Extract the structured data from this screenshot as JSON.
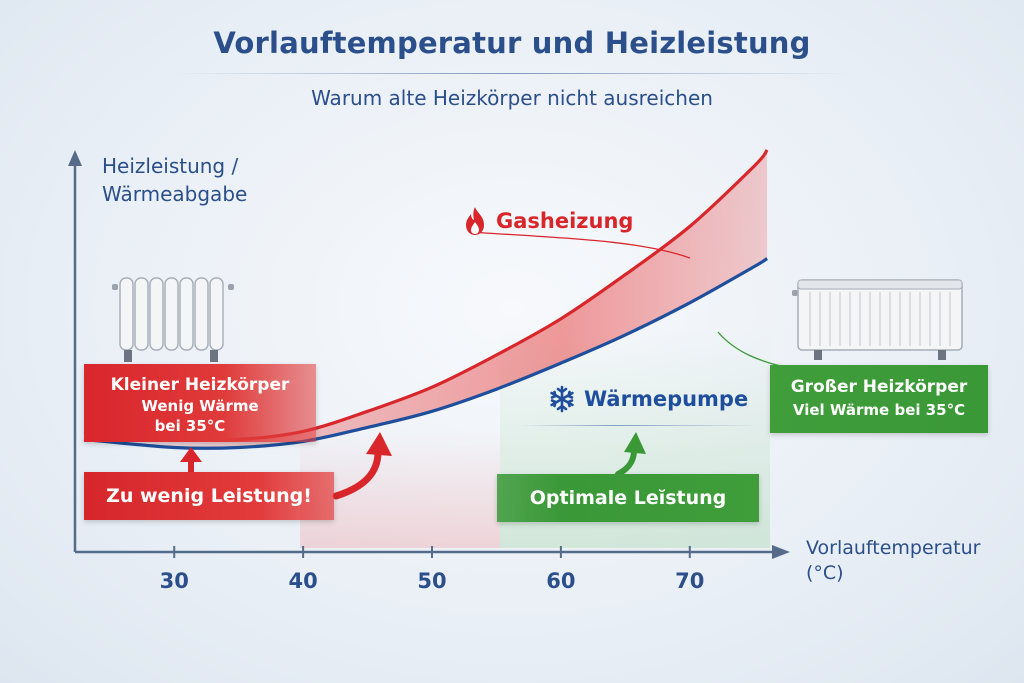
{
  "header": {
    "title": "Vorlauftemperatur und Heizleistung",
    "subtitle": "Warum alte Heizkörper nicht ausreichen"
  },
  "axes": {
    "y_label_line1": "Heizleistung /",
    "y_label_line2": "Wärmeabgabe",
    "x_label_line1": "Vorlauftemperatur",
    "x_label_line2": "(°C)"
  },
  "colors": {
    "gas": "#d8262b",
    "heat_pump": "#1f4f9c",
    "good": "#3a9837",
    "text": "#2b4f8a"
  },
  "icons": {
    "gas": "flame-icon",
    "heat_pump": "snowflake-icon",
    "small_radiator": "column-radiator-icon",
    "large_radiator": "panel-radiator-icon"
  },
  "annotations": {
    "small_radiator_title": "Kleiner Heizkörper",
    "small_radiator_line2": "Wenig Wärme",
    "small_radiator_line3": "bei 35°C",
    "large_radiator_title": "Großer Heizkörper",
    "large_radiator_line2": "Viel Wärme bei 35°C",
    "too_little": "Zu wenig Leistung!",
    "optimal": "Optimale Leĭstung"
  },
  "chart_data": {
    "type": "line",
    "title": "Vorlauftemperatur und Heizleistung",
    "subtitle": "Warum alte Heizkörper nicht ausreichen",
    "xlabel": "Vorlauftemperatur (°C)",
    "ylabel": "Heizleistung / Wärmeabgabe",
    "x_ticks": [
      30,
      40,
      50,
      60,
      70
    ],
    "xlim": [
      23,
      77
    ],
    "ylim": [
      0,
      100
    ],
    "y_ticks_shown": false,
    "grid": false,
    "legend": "inline labels",
    "series": [
      {
        "name": "Gasheizung",
        "x": [
          23,
          30,
          35,
          40,
          45,
          50,
          55,
          60,
          65,
          70,
          75,
          76
        ],
        "y": [
          30,
          28,
          28,
          30,
          35,
          41,
          49,
          58,
          69,
          81,
          96,
          100
        ]
      },
      {
        "name": "Wärmepumpe",
        "x": [
          23,
          30,
          35,
          40,
          45,
          50,
          55,
          60,
          65,
          70,
          75,
          76
        ],
        "y": [
          28,
          26,
          26,
          27.5,
          31,
          35,
          40.5,
          47,
          54,
          62,
          71,
          73
        ]
      }
    ]
  }
}
